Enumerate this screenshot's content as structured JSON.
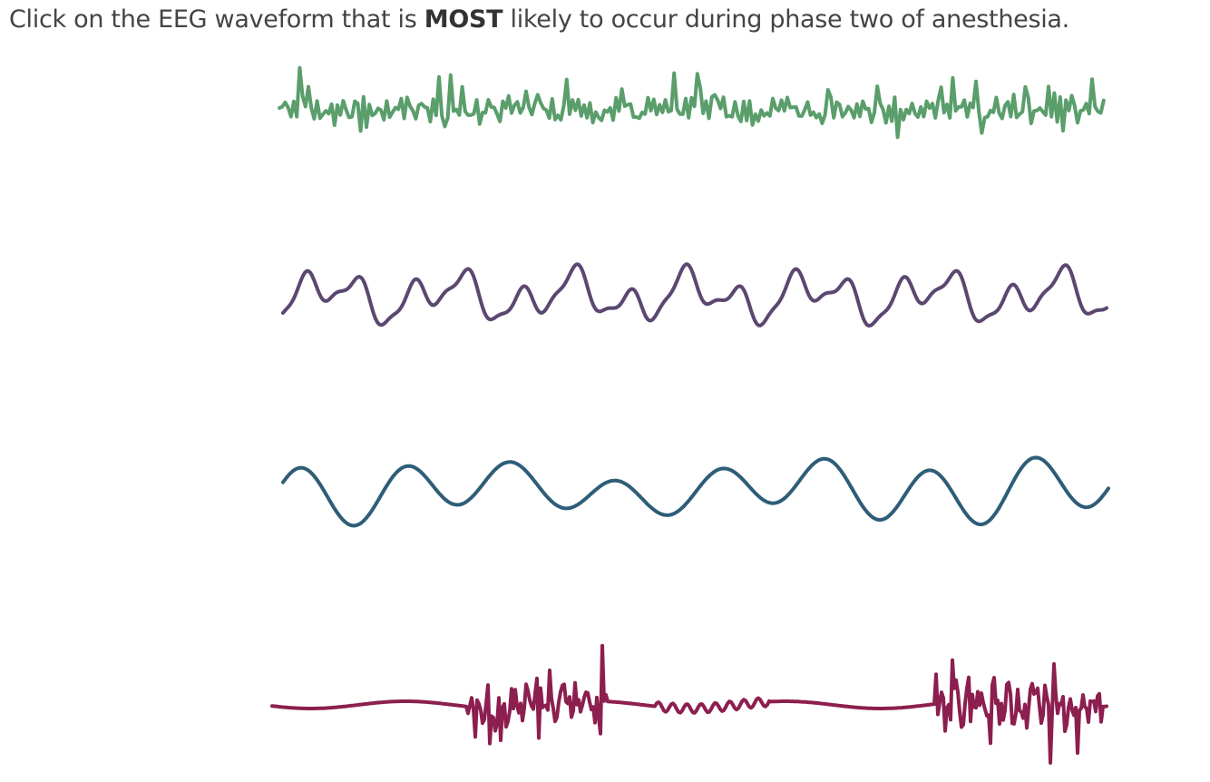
{
  "question": {
    "before": "Click on the EEG waveform that is ",
    "emphasis": "MOST",
    "after": " likely to occur during phase two of anesthesia."
  },
  "waveforms": [
    {
      "id": "waveform-1",
      "color": "#5a9e6b",
      "pattern": "high-frequency low-amplitude"
    },
    {
      "id": "waveform-2",
      "color": "#5b4770",
      "pattern": "irregular medium-frequency"
    },
    {
      "id": "waveform-3",
      "color": "#2e5d78",
      "pattern": "slow large-amplitude"
    },
    {
      "id": "waveform-4",
      "color": "#8c1f4f",
      "pattern": "burst suppression"
    }
  ]
}
